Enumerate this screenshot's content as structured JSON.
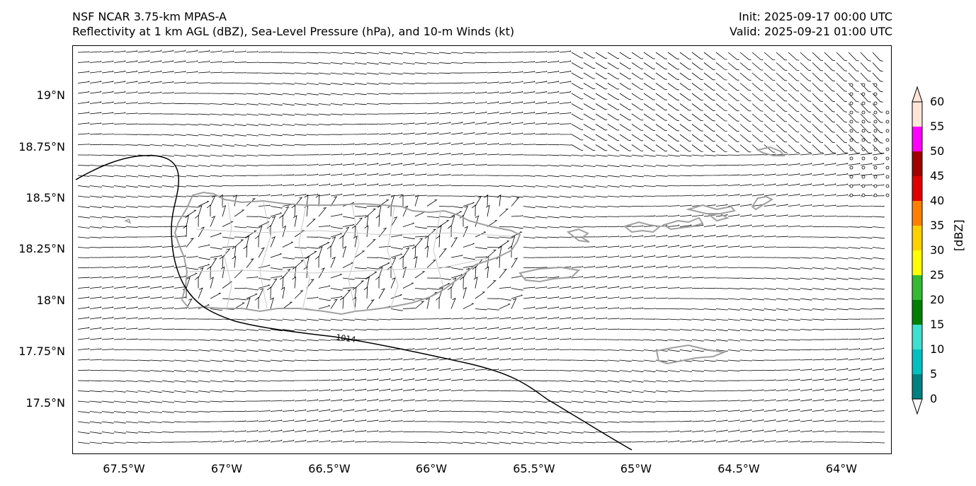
{
  "title": {
    "left_line1": "NSF NCAR 3.75-km MPAS-A",
    "left_line2": "Reflectivity at 1 km AGL (dBZ), Sea-Level Pressure (hPa), and 10-m Winds (kt)",
    "right_line1": "Init: 2025-09-17 00:00 UTC",
    "right_line2": "Valid: 2025-09-21 01:00 UTC"
  },
  "lat_labels": [
    "19°N",
    "18.75°N",
    "18.5°N",
    "18.25°N",
    "18°N",
    "17.75°N",
    "17.5°N"
  ],
  "lon_labels": [
    "67.5°W",
    "67°W",
    "66.5°W",
    "66°W",
    "65.5°W",
    "65°W",
    "64.5°W",
    "64°W"
  ],
  "isobar_label": "1014",
  "colorbar": {
    "label": "[dBZ]",
    "ticks": [
      "0",
      "5",
      "10",
      "15",
      "20",
      "25",
      "30",
      "35",
      "40",
      "45",
      "50",
      "55",
      "60"
    ],
    "colors": [
      "#008080",
      "#00c0c0",
      "#40e0d0",
      "#008000",
      "#33bb33",
      "#ffff00",
      "#ffd000",
      "#ff8000",
      "#e00000",
      "#a00000",
      "#ff00ff",
      "#ffe4d8"
    ]
  },
  "colors": {
    "coastline": "#a0a0a0",
    "isobar": "#000000",
    "barb": "#000000"
  }
}
